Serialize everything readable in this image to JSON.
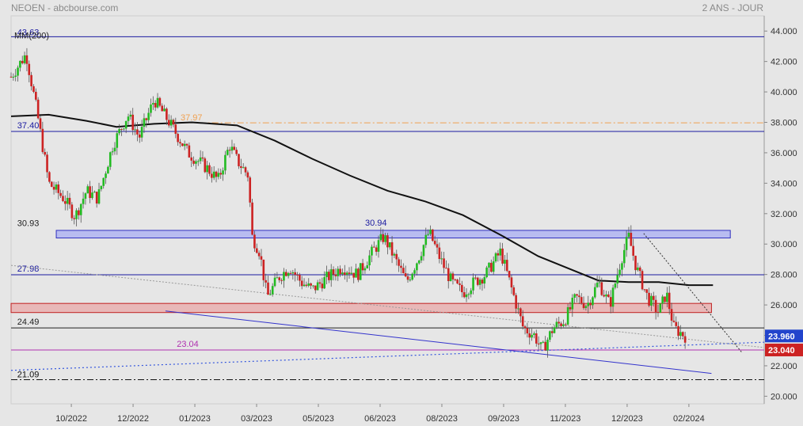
{
  "header": {
    "title": "NEOEN - abcbourse.com",
    "period": "2 ANS - JOUR"
  },
  "chart_data": {
    "type": "candlestick",
    "ma_label": "MM(200)",
    "yaxis": {
      "ticks": [
        "44.000",
        "42.000",
        "40.000",
        "38.000",
        "36.000",
        "34.000",
        "32.000",
        "30.000",
        "28.000",
        "26.000",
        "24.000",
        "22.000",
        "20.000"
      ],
      "range": [
        19.5,
        45.0
      ]
    },
    "xaxis": {
      "ticks": [
        "10/2022",
        "12/2022",
        "01/2023",
        "03/2023",
        "05/2023",
        "06/2023",
        "08/2023",
        "09/2023",
        "11/2023",
        "12/2023",
        "02/2024"
      ]
    },
    "levels": [
      {
        "label": "43.63",
        "value": 43.63,
        "style": "solid",
        "color": "#1a1aa0"
      },
      {
        "label": "37.40",
        "value": 37.4,
        "style": "solid",
        "color": "#1a1aa0"
      },
      {
        "label": "37.97",
        "value": 37.97,
        "style": "dashdot",
        "color": "#f0a050"
      },
      {
        "label": "30.94",
        "value": 30.94,
        "style": "zone",
        "color": "#1a1aa0"
      },
      {
        "label": "30.93",
        "value": 30.93,
        "style": "label",
        "color": "#222222"
      },
      {
        "label": "27.98",
        "value": 27.98,
        "style": "solid",
        "color": "#1a1aa0"
      },
      {
        "label": "24.49",
        "value": 24.49,
        "style": "solid",
        "color": "#222222"
      },
      {
        "label": "23.04",
        "value": 23.04,
        "style": "solid",
        "color": "#b030b0"
      },
      {
        "label": "21.09",
        "value": 21.09,
        "style": "dashdot",
        "color": "#111111"
      }
    ],
    "zones": [
      {
        "top": 30.9,
        "bottom": 30.4,
        "color": "#b8bcf0",
        "border": "#3030c0"
      },
      {
        "top": 26.1,
        "bottom": 25.5,
        "color": "#e8b8b8",
        "border": "#c02020"
      }
    ],
    "price_tags": [
      {
        "label": "23.960",
        "value": 23.96,
        "color": "#2244cc"
      },
      {
        "label": "23.040",
        "value": 23.04,
        "color": "#cc2222"
      }
    ],
    "price_path": [
      [
        0,
        41.0
      ],
      [
        0.02,
        42.5
      ],
      [
        0.035,
        38.5
      ],
      [
        0.05,
        34.0
      ],
      [
        0.07,
        33.0
      ],
      [
        0.085,
        31.8
      ],
      [
        0.1,
        33.5
      ],
      [
        0.115,
        33.0
      ],
      [
        0.135,
        36.5
      ],
      [
        0.155,
        38.5
      ],
      [
        0.17,
        37.0
      ],
      [
        0.19,
        39.5
      ],
      [
        0.21,
        38.0
      ],
      [
        0.235,
        36.0
      ],
      [
        0.26,
        35.0
      ],
      [
        0.275,
        34.2
      ],
      [
        0.29,
        36.5
      ],
      [
        0.3,
        35.5
      ],
      [
        0.315,
        34.5
      ],
      [
        0.32,
        30.5
      ],
      [
        0.33,
        29.5
      ],
      [
        0.34,
        26.5
      ],
      [
        0.355,
        27.8
      ],
      [
        0.37,
        28.5
      ],
      [
        0.385,
        27.5
      ],
      [
        0.4,
        27.0
      ],
      [
        0.42,
        27.8
      ],
      [
        0.44,
        28.5
      ],
      [
        0.46,
        28.0
      ],
      [
        0.48,
        29.5
      ],
      [
        0.495,
        30.5
      ],
      [
        0.51,
        29.0
      ],
      [
        0.525,
        27.5
      ],
      [
        0.54,
        29.0
      ],
      [
        0.555,
        30.8
      ],
      [
        0.57,
        29.0
      ],
      [
        0.585,
        27.5
      ],
      [
        0.6,
        26.8
      ],
      [
        0.615,
        27.5
      ],
      [
        0.63,
        28.0
      ],
      [
        0.65,
        29.5
      ],
      [
        0.665,
        27.0
      ],
      [
        0.68,
        24.5
      ],
      [
        0.695,
        24.0
      ],
      [
        0.705,
        23.0
      ],
      [
        0.72,
        24.5
      ],
      [
        0.735,
        25.0
      ],
      [
        0.75,
        26.5
      ],
      [
        0.765,
        26.0
      ],
      [
        0.78,
        27.5
      ],
      [
        0.795,
        26.0
      ],
      [
        0.81,
        29.0
      ],
      [
        0.82,
        30.5
      ],
      [
        0.83,
        28.5
      ],
      [
        0.845,
        26.5
      ],
      [
        0.86,
        25.5
      ],
      [
        0.87,
        26.8
      ],
      [
        0.88,
        24.5
      ],
      [
        0.895,
        23.96
      ]
    ]
  }
}
